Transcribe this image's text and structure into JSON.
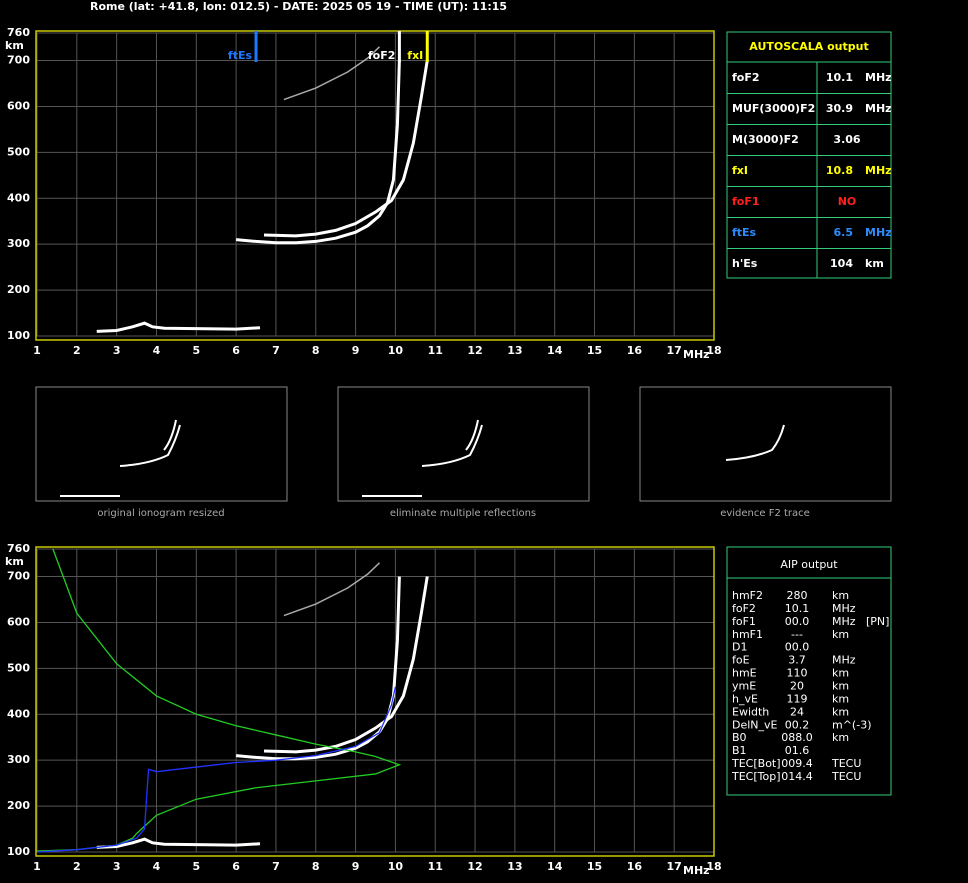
{
  "header": {
    "title": "Rome (lat: +41.8, lon: 012.5) - DATE: 2025 05 19 - TIME (UT): 11:15"
  },
  "chart_data": [
    {
      "type": "line",
      "ylabel": "km",
      "xlabel": "MHz",
      "xlim": [
        1,
        18
      ],
      "ylim": [
        100,
        760
      ],
      "xticks": [
        1,
        2,
        3,
        4,
        5,
        6,
        7,
        8,
        9,
        10,
        11,
        12,
        13,
        14,
        15,
        16,
        17,
        18
      ],
      "yticks": [
        100,
        200,
        300,
        400,
        500,
        600,
        700,
        760
      ],
      "grid": true,
      "markers": [
        {
          "label": "ftEs",
          "x": 6.5,
          "color": "#1e78ff"
        },
        {
          "label": "foF2",
          "x": 10.1,
          "color": "#ffffff"
        },
        {
          "label": "fxI",
          "x": 10.8,
          "color": "#ffff00"
        }
      ],
      "series": [
        {
          "color": "#ffffff",
          "x": [
            6.0,
            6.5,
            7.0,
            7.5,
            8.0,
            8.5,
            9.0,
            9.3,
            9.6,
            9.8,
            9.95,
            10.05,
            10.1
          ],
          "values": [
            310,
            306,
            303,
            303,
            306,
            313,
            326,
            340,
            362,
            390,
            440,
            560,
            700
          ]
        },
        {
          "color": "#ffffff",
          "x": [
            6.7,
            7.5,
            8.0,
            8.5,
            9.0,
            9.5,
            9.9,
            10.2,
            10.45,
            10.65,
            10.8
          ],
          "values": [
            320,
            318,
            322,
            330,
            345,
            370,
            395,
            440,
            520,
            620,
            700
          ]
        },
        {
          "color": "#ffffff",
          "x": [
            2.5,
            3.0,
            3.4,
            3.7,
            3.9,
            4.2,
            5.0,
            6.0,
            6.6
          ],
          "values": [
            110,
            112,
            120,
            128,
            120,
            117,
            116,
            115,
            118
          ]
        },
        {
          "color": "#aaaaaa",
          "x": [
            7.2,
            8.0,
            8.8,
            9.3,
            9.6
          ],
          "values": [
            615,
            640,
            675,
            705,
            730
          ]
        }
      ]
    },
    {
      "type": "line",
      "ylabel": "km",
      "xlabel": "MHz",
      "xlim": [
        1,
        18
      ],
      "ylim": [
        100,
        760
      ],
      "xticks": [
        1,
        2,
        3,
        4,
        5,
        6,
        7,
        8,
        9,
        10,
        11,
        12,
        13,
        14,
        15,
        16,
        17,
        18
      ],
      "yticks": [
        100,
        200,
        300,
        400,
        500,
        600,
        700,
        760
      ],
      "grid": true,
      "series": [
        {
          "color": "#ffffff",
          "x": [
            6.0,
            6.5,
            7.0,
            7.5,
            8.0,
            8.5,
            9.0,
            9.3,
            9.6,
            9.8,
            9.95,
            10.05,
            10.1
          ],
          "values": [
            310,
            306,
            303,
            303,
            306,
            313,
            326,
            340,
            362,
            390,
            440,
            560,
            700
          ]
        },
        {
          "color": "#ffffff",
          "x": [
            6.7,
            7.5,
            8.0,
            8.5,
            9.0,
            9.5,
            9.9,
            10.2,
            10.45,
            10.65,
            10.8
          ],
          "values": [
            320,
            318,
            322,
            330,
            345,
            370,
            395,
            440,
            520,
            620,
            700
          ]
        },
        {
          "color": "#ffffff",
          "x": [
            2.5,
            3.0,
            3.4,
            3.7,
            3.9,
            4.2,
            5.0,
            6.0,
            6.6
          ],
          "values": [
            110,
            112,
            120,
            128,
            120,
            117,
            116,
            115,
            118
          ]
        },
        {
          "color": "#aaaaaa",
          "x": [
            7.2,
            8.0,
            8.8,
            9.3,
            9.6
          ],
          "values": [
            615,
            640,
            675,
            705,
            730
          ]
        },
        {
          "color": "#22cc22",
          "x": [
            1.4,
            2.0,
            3.0,
            4.0,
            5.0,
            6.0,
            7.0,
            8.0,
            9.0,
            9.5,
            10.1,
            9.5,
            8.0,
            6.5,
            5.0,
            4.0,
            3.5,
            3.4,
            3.0,
            2.0,
            1.0
          ],
          "values": [
            760,
            620,
            510,
            440,
            400,
            375,
            355,
            335,
            318,
            308,
            290,
            270,
            255,
            240,
            215,
            180,
            140,
            130,
            115,
            105,
            102
          ]
        },
        {
          "color": "#2233ff",
          "x": [
            1.0,
            2.0,
            3.0,
            3.5,
            3.7,
            3.8,
            4.0,
            5.0,
            6.0,
            7.0,
            8.0,
            9.0,
            9.6,
            9.9,
            10.0
          ],
          "values": [
            100,
            105,
            115,
            130,
            150,
            280,
            275,
            285,
            295,
            300,
            310,
            330,
            360,
            420,
            460
          ]
        }
      ]
    }
  ],
  "thumbnails": [
    "original ionogram resized",
    "eliminate multiple reflections",
    "evidence F2 trace"
  ],
  "autoscala": {
    "title": "AUTOSCALA output",
    "rows": [
      {
        "label": "foF2",
        "value": "10.1",
        "unit": "MHz",
        "color": "#ffffff"
      },
      {
        "label": "MUF(3000)F2",
        "value": "30.9",
        "unit": "MHz",
        "color": "#ffffff"
      },
      {
        "label": "M(3000)F2",
        "value": "3.06",
        "color": "#ffffff"
      },
      {
        "label": "fxI",
        "value": "10.8",
        "unit": "MHz",
        "color": "#ffff00"
      },
      {
        "label": "foF1",
        "value": "NO",
        "color": "#ff2020"
      },
      {
        "label": "ftEs",
        "value": "6.5",
        "unit": "MHz",
        "color": "#2e8cff"
      },
      {
        "label": "h'Es",
        "value": "104",
        "unit": "km",
        "color": "#ffffff"
      }
    ]
  },
  "aip": {
    "title": "AIP output",
    "rows": [
      {
        "label": "hmF2",
        "value": "280",
        "unit": "km"
      },
      {
        "label": "foF2",
        "value": "10.1",
        "unit": "MHz"
      },
      {
        "label": "foF1",
        "value": "00.0",
        "unit": "MHz",
        "note": "[PN]"
      },
      {
        "label": "hmF1",
        "value": "---",
        "unit": "km"
      },
      {
        "label": "D1",
        "value": "00.0"
      },
      {
        "label": "foE",
        "value": "3.7",
        "unit": "MHz"
      },
      {
        "label": "hmE",
        "value": "110",
        "unit": "km"
      },
      {
        "label": "ymE",
        "value": "20",
        "unit": "km"
      },
      {
        "label": "h_vE",
        "value": "119",
        "unit": "km"
      },
      {
        "label": "Ewidth",
        "value": "24",
        "unit": "km"
      },
      {
        "label": "DelN_vE",
        "value": "00.2",
        "unit": "m^(-3)"
      },
      {
        "label": "B0",
        "value": "088.0",
        "unit": "km"
      },
      {
        "label": "B1",
        "value": "01.6"
      },
      {
        "label": "TEC[Bot]",
        "value": "009.4",
        "unit": "TECU"
      },
      {
        "label": "TEC[Top]",
        "value": "014.4",
        "unit": "TECU"
      }
    ]
  }
}
